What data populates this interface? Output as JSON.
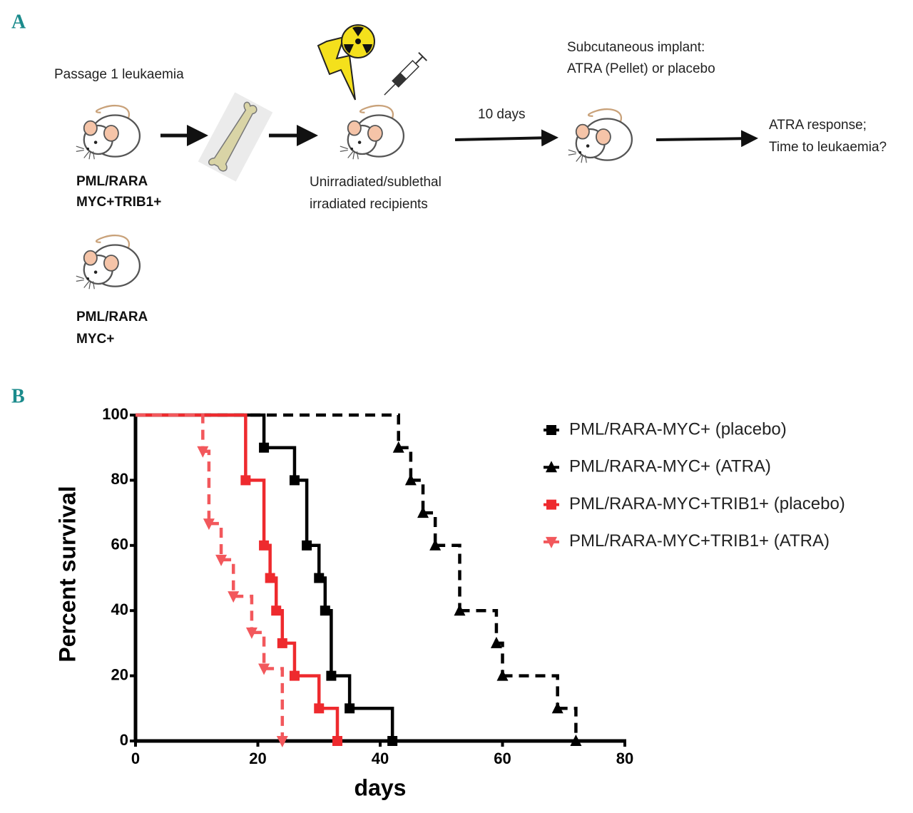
{
  "panels": [
    "A",
    "B"
  ],
  "diagram": {
    "source_label": "Passage 1 leukaemia",
    "donors": [
      [
        "PML/RARA",
        "MYC+TRIB1+"
      ],
      [
        "PML/RARA",
        "MYC+"
      ]
    ],
    "recipients": [
      "Unirradiated/sublethal",
      "irradiated recipients"
    ],
    "interval": "10 days",
    "implant": [
      "Subcutaneous implant:",
      "ATRA (Pellet) or placebo"
    ],
    "outcome": [
      "ATRA response;",
      "Time to leukaemia?"
    ]
  },
  "chart_data": {
    "type": "line",
    "xlabel": "days",
    "ylabel": "Percent survival",
    "xlim": [
      0,
      80
    ],
    "xticks": [
      0,
      20,
      40,
      60,
      80
    ],
    "ylim": [
      0,
      100
    ],
    "yticks": [
      0,
      20,
      40,
      60,
      80,
      100
    ],
    "legend": "upper right",
    "series": [
      {
        "name": "PML/RARA-MYC+ (placebo)",
        "color": "#000000",
        "dash": "solid",
        "marker": "square",
        "x": [
          0,
          21,
          26,
          28,
          30,
          31,
          32,
          35,
          42
        ],
        "values": [
          100,
          90,
          80,
          60,
          50,
          40,
          20,
          10,
          0
        ]
      },
      {
        "name": "PML/RARA-MYC+ (ATRA)",
        "color": "#000000",
        "dash": "dashed",
        "marker": "triangle",
        "x": [
          0,
          43,
          45,
          47,
          49,
          53,
          59,
          60,
          69,
          72
        ],
        "values": [
          100,
          90,
          80,
          70,
          60,
          40,
          30,
          20,
          10,
          0
        ]
      },
      {
        "name": "PML/RARA-MYC+TRIB1+ (placebo)",
        "color": "#ee2a2e",
        "dash": "solid",
        "marker": "square",
        "x": [
          0,
          18,
          21,
          22,
          23,
          24,
          26,
          30,
          33
        ],
        "values": [
          100,
          80,
          60,
          50,
          40,
          30,
          20,
          10,
          0
        ]
      },
      {
        "name": "PML/RARA-MYC+TRIB1+ (ATRA)",
        "color": "#f2585c",
        "dash": "dashed",
        "marker": "triangle-down",
        "x": [
          0,
          11,
          12,
          14,
          16,
          19,
          21,
          24
        ],
        "values": [
          100,
          88.9,
          66.7,
          55.6,
          44.4,
          33.3,
          22.2,
          0
        ]
      }
    ]
  }
}
